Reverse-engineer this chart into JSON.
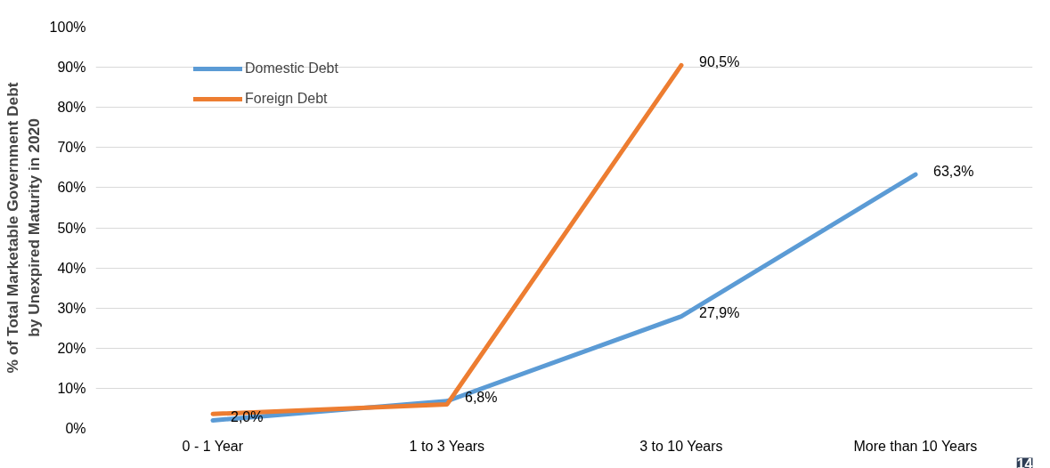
{
  "chart_data": {
    "type": "line",
    "ylabel": "% of Total Marketable Government Debt\nby Unexpired Maturity in 2020",
    "categories": [
      "0 - 1 Year",
      "1 to 3 Years",
      "3 to 10 Years",
      "More than 10 Years"
    ],
    "series": [
      {
        "name": "Domestic Debt",
        "color": "#5b9bd5",
        "values": [
          2.0,
          6.8,
          27.9,
          63.3
        ],
        "value_labels": [
          "2,0%",
          "6,8%",
          "27,9%",
          "63,3%"
        ]
      },
      {
        "name": "Foreign Debt",
        "color": "#ed7d31",
        "values": [
          3.6,
          6.0,
          90.5,
          null
        ],
        "value_labels": [
          null,
          null,
          "90,5%",
          null
        ]
      }
    ],
    "ylim": [
      0,
      100
    ],
    "yticks": [
      {
        "value": 0,
        "label": "0%"
      },
      {
        "value": 10,
        "label": "10%"
      },
      {
        "value": 20,
        "label": "20%"
      },
      {
        "value": 30,
        "label": "30%"
      },
      {
        "value": 40,
        "label": "40%"
      },
      {
        "value": 50,
        "label": "50%"
      },
      {
        "value": 60,
        "label": "60%"
      },
      {
        "value": 70,
        "label": "70%"
      },
      {
        "value": 80,
        "label": "80%"
      },
      {
        "value": 90,
        "label": "90%"
      },
      {
        "value": 100,
        "label": "100%"
      }
    ],
    "grid": "y",
    "legend": "top left",
    "marker": "none",
    "line_style": "solid",
    "annotations": [
      "14"
    ]
  }
}
